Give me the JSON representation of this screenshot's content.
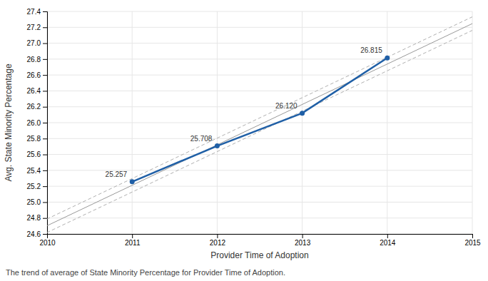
{
  "chart_data": {
    "type": "line",
    "xlabel": "Provider Time of Adoption",
    "ylabel": "Avg. State Minority Percentage",
    "caption": "The trend of average of State Minority Percentage for Provider Time of Adoption.",
    "xlim": [
      2010,
      2015
    ],
    "xticks": [
      2010,
      2011,
      2012,
      2013,
      2014,
      2015
    ],
    "ylim": [
      24.6,
      27.4
    ],
    "yticks": [
      24.6,
      24.8,
      {
        "value": 25,
        "label": "25.0"
      },
      25.2,
      25.4,
      25.6,
      25.8,
      {
        "value": 26,
        "label": "26.0"
      },
      26.2,
      26.4,
      26.6,
      26.8,
      {
        "value": 27,
        "label": "27.0"
      },
      27.2,
      27.4
    ],
    "grid": true,
    "data_labels": true,
    "series": [
      {
        "x": [
          2010,
          2015
        ],
        "values": [
          24.7885,
          27.3315
        ],
        "color": "#b0b0b0",
        "line_style": "dashed"
      },
      {
        "x": [
          2010,
          2015
        ],
        "values": [
          24.6185,
          27.1615
        ],
        "color": "#b0b0b0",
        "line_style": "dashed"
      },
      {
        "x": [
          2010,
          2015
        ],
        "values": [
          24.7035,
          27.2465
        ],
        "color": "#999999",
        "line_style": "solid"
      },
      {
        "x": [
          2011,
          2012,
          2013,
          2014
        ],
        "values": [
          25.257,
          25.708,
          26.12,
          26.815
        ],
        "value_labels": [
          "25.257",
          "25.708",
          "26.120",
          "26.815"
        ],
        "color": "#1f5fa6",
        "line_style": "solid",
        "marker": "circle"
      }
    ]
  }
}
